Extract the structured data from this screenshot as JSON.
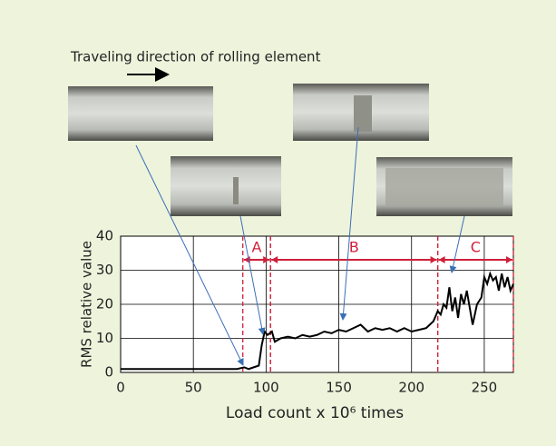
{
  "chart_data": {
    "type": "line",
    "annotation": "Traveling direction of rolling element",
    "x_label": "Load count x 10⁶ times",
    "y_label": "RMS relative value",
    "xlim": [
      0,
      270
    ],
    "xticks": [
      0,
      50,
      100,
      150,
      200,
      250
    ],
    "ylim": [
      0,
      40
    ],
    "yticks": [
      0,
      10,
      20,
      30,
      40
    ],
    "grid": true,
    "series": [
      {
        "color": "#000000",
        "x": [
          0,
          80,
          85,
          88,
          95,
          97,
          99,
          101,
          104,
          106,
          110,
          115,
          120,
          125,
          130,
          135,
          140,
          145,
          150,
          155,
          160,
          165,
          170,
          175,
          180,
          185,
          190,
          195,
          200,
          205,
          210,
          215,
          218,
          220,
          222,
          224,
          226,
          228,
          230,
          232,
          234,
          236,
          238,
          240,
          242,
          245,
          248,
          250,
          252,
          254,
          256,
          258,
          260,
          262,
          264,
          266,
          268,
          270
        ],
        "values": [
          1,
          1,
          1.5,
          1,
          2,
          8,
          12,
          11,
          12,
          9,
          10,
          10.5,
          10,
          11,
          10.5,
          11,
          12,
          11.5,
          12.5,
          12,
          13,
          14,
          12,
          13,
          12.5,
          13,
          12,
          13,
          12,
          12.5,
          13,
          15,
          18,
          17,
          20,
          19,
          25,
          18,
          22,
          16,
          23,
          20,
          24,
          19,
          14,
          20,
          22,
          28,
          26,
          29,
          27,
          28,
          24,
          29,
          25,
          28,
          24,
          26
        ]
      }
    ],
    "regions": [
      {
        "label": "A",
        "start": 84,
        "end": 103,
        "color": "#d0203a"
      },
      {
        "label": "B",
        "start": 103,
        "end": 218,
        "color": "#d0203a"
      },
      {
        "label": "C",
        "start": 218,
        "end": 270,
        "color": "#d0203a"
      }
    ]
  }
}
